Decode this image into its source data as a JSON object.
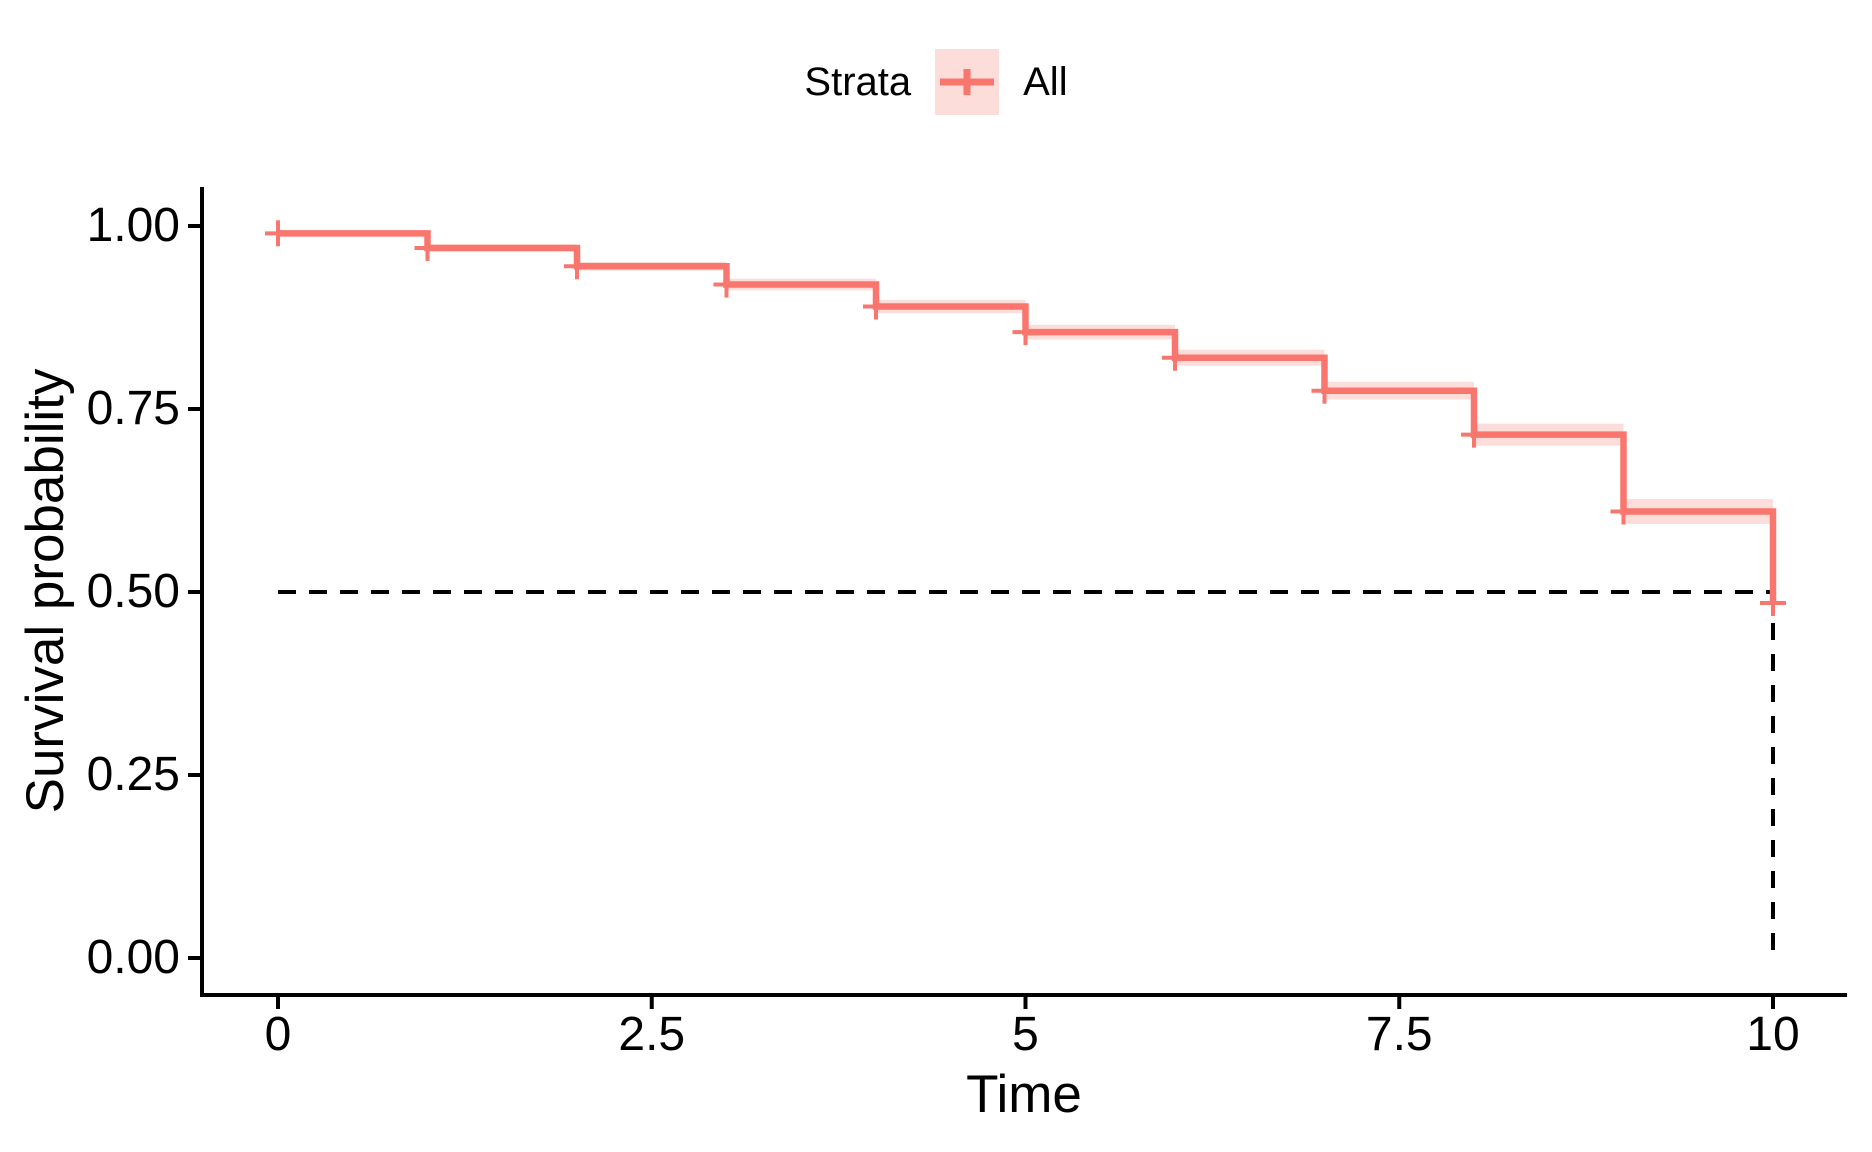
{
  "legend": {
    "title": "Strata",
    "items": [
      {
        "label": "All"
      }
    ]
  },
  "colors": {
    "curve": "#F8766D",
    "ribbon": "#F8766D",
    "ribbon_opacity": 0.25,
    "axis": "#000000",
    "median_dash": "#000000",
    "text": "#000000"
  },
  "chart_data": {
    "type": "line",
    "subtype": "kaplan-meier-step",
    "title": "",
    "xlabel": "Time",
    "ylabel": "Survival probability",
    "xlim": [
      0,
      10
    ],
    "ylim": [
      0,
      1
    ],
    "grid": "off",
    "legend_position": "top",
    "x_ticks": [
      {
        "v": 0,
        "label": "0"
      },
      {
        "v": 2.5,
        "label": "2.5"
      },
      {
        "v": 5,
        "label": "5"
      },
      {
        "v": 7.5,
        "label": "7.5"
      },
      {
        "v": 10,
        "label": "10"
      }
    ],
    "y_ticks": [
      {
        "v": 0.0,
        "label": "0.00"
      },
      {
        "v": 0.25,
        "label": "0.25"
      },
      {
        "v": 0.5,
        "label": "0.50"
      },
      {
        "v": 0.75,
        "label": "0.75"
      },
      {
        "v": 1.0,
        "label": "1.00"
      }
    ],
    "series": [
      {
        "name": "All",
        "steps": [
          {
            "t": 0,
            "s": 0.99,
            "ci": 0.003
          },
          {
            "t": 1,
            "s": 0.97,
            "ci": 0.005
          },
          {
            "t": 2,
            "s": 0.945,
            "ci": 0.006
          },
          {
            "t": 3,
            "s": 0.92,
            "ci": 0.008
          },
          {
            "t": 4,
            "s": 0.89,
            "ci": 0.009
          },
          {
            "t": 5,
            "s": 0.855,
            "ci": 0.01
          },
          {
            "t": 6,
            "s": 0.82,
            "ci": 0.011
          },
          {
            "t": 7,
            "s": 0.775,
            "ci": 0.012
          },
          {
            "t": 8,
            "s": 0.715,
            "ci": 0.015
          },
          {
            "t": 9,
            "s": 0.61,
            "ci": 0.017
          },
          {
            "t": 10,
            "s": 0.485,
            "ci": 0.019
          }
        ],
        "censor_times": [
          0,
          1,
          2,
          3,
          4,
          5,
          6,
          7,
          8,
          9,
          10
        ]
      }
    ],
    "median_annotation": {
      "survival": 0.5,
      "time": 10,
      "style": "dashed"
    }
  }
}
